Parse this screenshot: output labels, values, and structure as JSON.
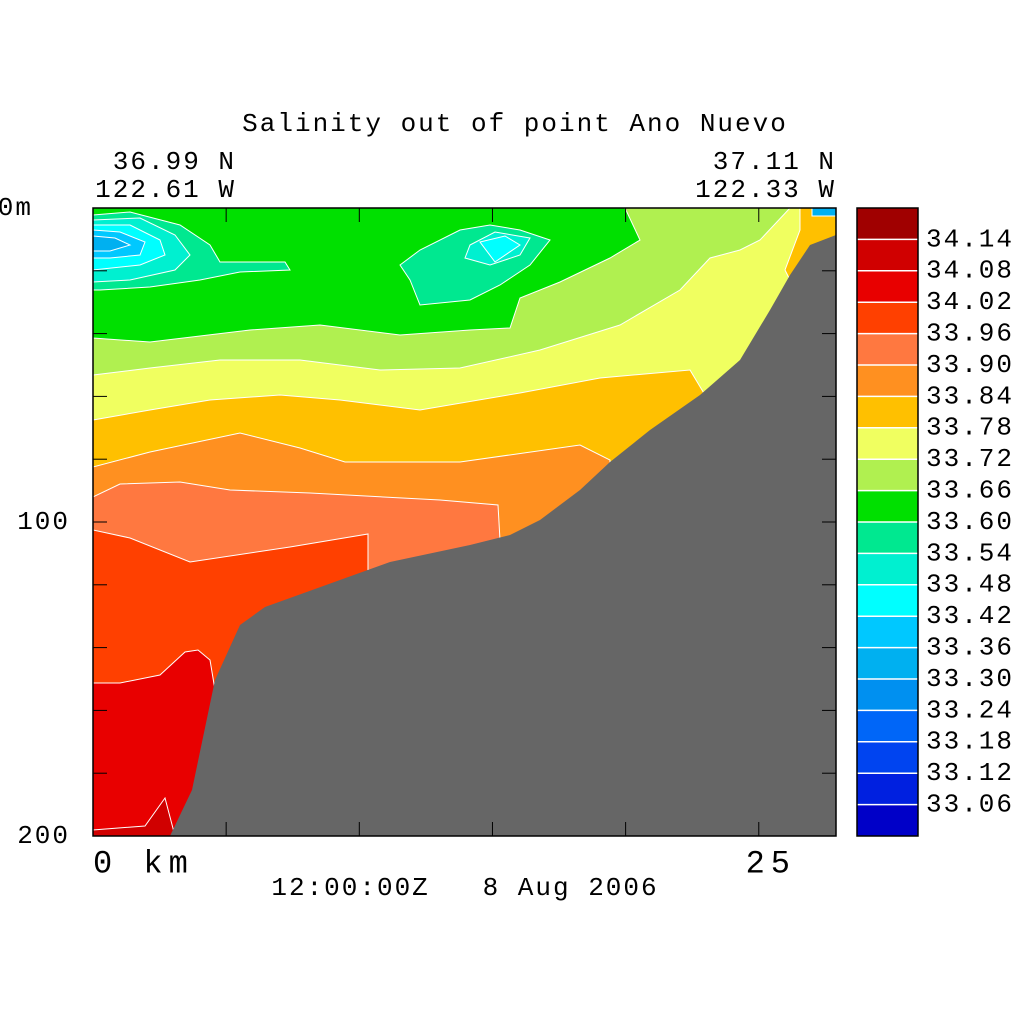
{
  "chart_data": {
    "type": "contour",
    "title": "Salinity out of point Ano Nuevo",
    "left_corner": [
      "36.99 N",
      "122.61 W"
    ],
    "right_corner": [
      "37.11 N",
      "122.33 W"
    ],
    "time_label": "12:00:00Z   8 Aug 2006",
    "xlim": [
      0,
      27.9
    ],
    "xticks": [
      {
        "value": 0,
        "label": "0 km"
      },
      25
    ],
    "xminor_ticks": [
      5,
      10,
      15,
      20
    ],
    "ylim": [
      200,
      0
    ],
    "yticks": [
      {
        "value": 0,
        "label": "0m"
      },
      100,
      200
    ],
    "yminor_ticks": [
      20,
      40,
      60,
      80,
      120,
      140,
      160,
      180
    ],
    "levels": [
      33.06,
      33.12,
      33.18,
      33.24,
      {
        "value": 33.3,
        "label": "33.30"
      },
      33.36,
      33.42,
      33.48,
      33.54,
      {
        "value": 33.6,
        "label": "33.60"
      },
      33.66,
      33.72,
      33.78,
      33.84,
      {
        "value": 33.9,
        "label": "33.90"
      },
      33.96,
      34.02,
      34.08,
      34.14
    ],
    "colors": [
      "#0000c8",
      "#0020e0",
      "#0044f0",
      "#0066f8",
      "#0090f0",
      "#00b0f0",
      "#00c8ff",
      "#00ffff",
      "#00f0d0",
      "#00e890",
      "#00e000",
      "#b0f050",
      "#f0ff60",
      "#ffc000",
      "#ff9020",
      "#ff7840",
      "#ff4000",
      "#e80000",
      "#d00000",
      "#a00000"
    ],
    "land_color": "#666666"
  }
}
